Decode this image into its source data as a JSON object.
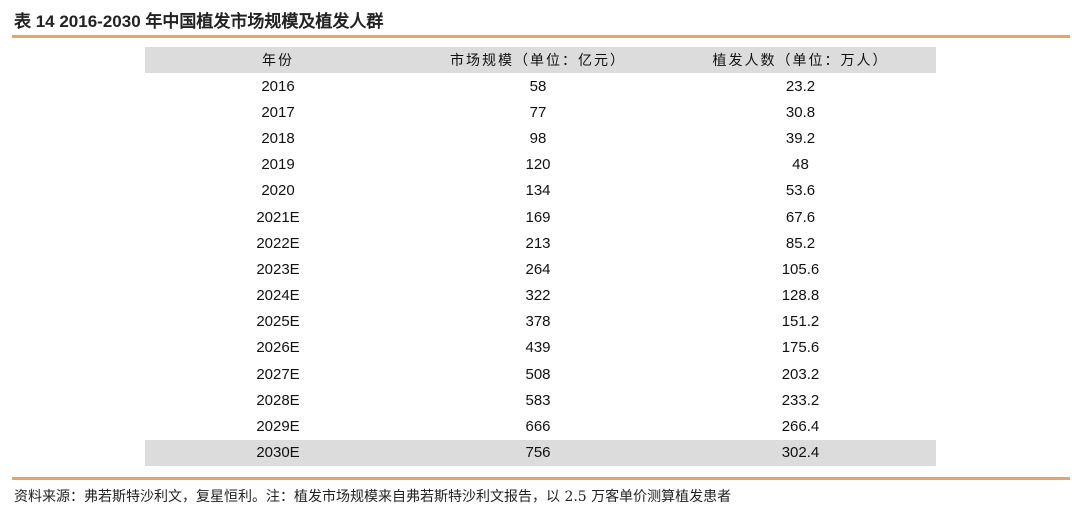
{
  "title": "表 14 2016-2030 年中国植发市场规模及植发人群",
  "table": {
    "headers": [
      "年份",
      "市场规模（单位：亿元）",
      "植发人数（单位：万人）"
    ],
    "rows": [
      [
        "2016",
        "58",
        "23.2"
      ],
      [
        "2017",
        "77",
        "30.8"
      ],
      [
        "2018",
        "98",
        "39.2"
      ],
      [
        "2019",
        "120",
        "48"
      ],
      [
        "2020",
        "134",
        "53.6"
      ],
      [
        "2021E",
        "169",
        "67.6"
      ],
      [
        "2022E",
        "213",
        "85.2"
      ],
      [
        "2023E",
        "264",
        "105.6"
      ],
      [
        "2024E",
        "322",
        "128.8"
      ],
      [
        "2025E",
        "378",
        "151.2"
      ],
      [
        "2026E",
        "439",
        "175.6"
      ],
      [
        "2027E",
        "508",
        "203.2"
      ],
      [
        "2028E",
        "583",
        "233.2"
      ],
      [
        "2029E",
        "666",
        "266.4"
      ],
      [
        "2030E",
        "756",
        "302.4"
      ]
    ]
  },
  "footnote": "资料来源：弗若斯特沙利文，复星恒利。注：植发市场规模来自弗若斯特沙利文报告，以 2.5 万客单价测算植发患者",
  "colors": {
    "accent": "#f0a060",
    "header_bg": "#dcdcdc"
  }
}
